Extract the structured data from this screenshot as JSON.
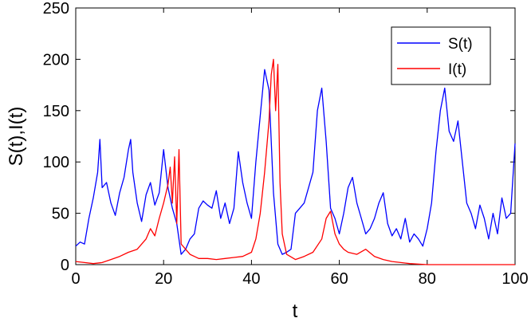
{
  "chart_data": {
    "type": "line",
    "xlabel": "t",
    "ylabel": "S(t),I(t)",
    "xlim": [
      0,
      100
    ],
    "ylim": [
      0,
      250
    ],
    "xticks": [
      "0",
      "20",
      "40",
      "60",
      "80",
      "100"
    ],
    "yticks": [
      "0",
      "50",
      "100",
      "150",
      "200",
      "250"
    ],
    "legend_position": "top-right",
    "grid": false,
    "series": [
      {
        "name": "S(t)",
        "color": "#0000ff",
        "x": [
          0,
          1,
          2,
          3,
          4,
          5,
          5.5,
          6,
          7,
          8,
          9,
          10,
          11,
          12,
          12.5,
          13,
          14,
          15,
          16,
          17,
          18,
          19,
          20,
          21,
          22,
          23,
          24,
          25,
          26,
          27,
          28,
          29,
          30,
          31,
          32,
          33,
          34,
          35,
          36,
          37,
          38,
          39,
          40,
          41,
          42,
          43,
          44,
          45,
          46,
          47,
          48,
          49,
          50,
          51,
          52,
          53,
          54,
          55,
          56,
          57,
          58,
          59,
          60,
          61,
          62,
          63,
          64,
          65,
          66,
          67,
          68,
          69,
          70,
          71,
          72,
          73,
          74,
          75,
          76,
          77,
          78,
          79,
          80,
          81,
          82,
          83,
          84,
          85,
          86,
          87,
          88,
          89,
          90,
          91,
          92,
          93,
          94,
          95,
          96,
          97,
          98,
          99,
          100
        ],
        "values": [
          18,
          22,
          20,
          45,
          65,
          90,
          122,
          75,
          80,
          60,
          48,
          70,
          85,
          112,
          122,
          90,
          60,
          42,
          68,
          80,
          58,
          70,
          112,
          75,
          55,
          40,
          10,
          15,
          25,
          30,
          55,
          62,
          58,
          55,
          72,
          45,
          60,
          40,
          55,
          110,
          80,
          60,
          45,
          100,
          145,
          190,
          170,
          70,
          20,
          10,
          12,
          15,
          50,
          55,
          60,
          75,
          90,
          150,
          172,
          120,
          55,
          45,
          30,
          50,
          75,
          85,
          60,
          45,
          30,
          35,
          45,
          60,
          70,
          40,
          28,
          35,
          25,
          45,
          22,
          30,
          25,
          18,
          35,
          60,
          110,
          150,
          172,
          130,
          120,
          140,
          100,
          60,
          50,
          35,
          58,
          45,
          25,
          50,
          30,
          65,
          45,
          50,
          118
        ]
      },
      {
        "name": "I(t)",
        "color": "#ff0000",
        "x": [
          0,
          2,
          4,
          6,
          8,
          10,
          12,
          14,
          16,
          17,
          18,
          19,
          20,
          21,
          21.5,
          22,
          22.5,
          23,
          23.5,
          24,
          25,
          26,
          27,
          28,
          30,
          32,
          34,
          36,
          38,
          40,
          41,
          42,
          43,
          44,
          44.5,
          45,
          45.5,
          46,
          46.5,
          47,
          48,
          50,
          52,
          54,
          56,
          57,
          58,
          59,
          60,
          61,
          62,
          64,
          66,
          68,
          70,
          72,
          74,
          76,
          80,
          90,
          100
        ],
        "values": [
          3,
          2,
          1,
          2,
          5,
          8,
          12,
          15,
          25,
          35,
          28,
          45,
          60,
          78,
          95,
          60,
          105,
          40,
          112,
          20,
          15,
          10,
          8,
          6,
          6,
          5,
          6,
          7,
          8,
          12,
          25,
          50,
          90,
          140,
          185,
          200,
          150,
          195,
          80,
          30,
          10,
          5,
          8,
          12,
          25,
          45,
          52,
          30,
          20,
          15,
          12,
          10,
          15,
          8,
          5,
          3,
          2,
          1,
          0,
          0,
          0
        ]
      }
    ]
  }
}
